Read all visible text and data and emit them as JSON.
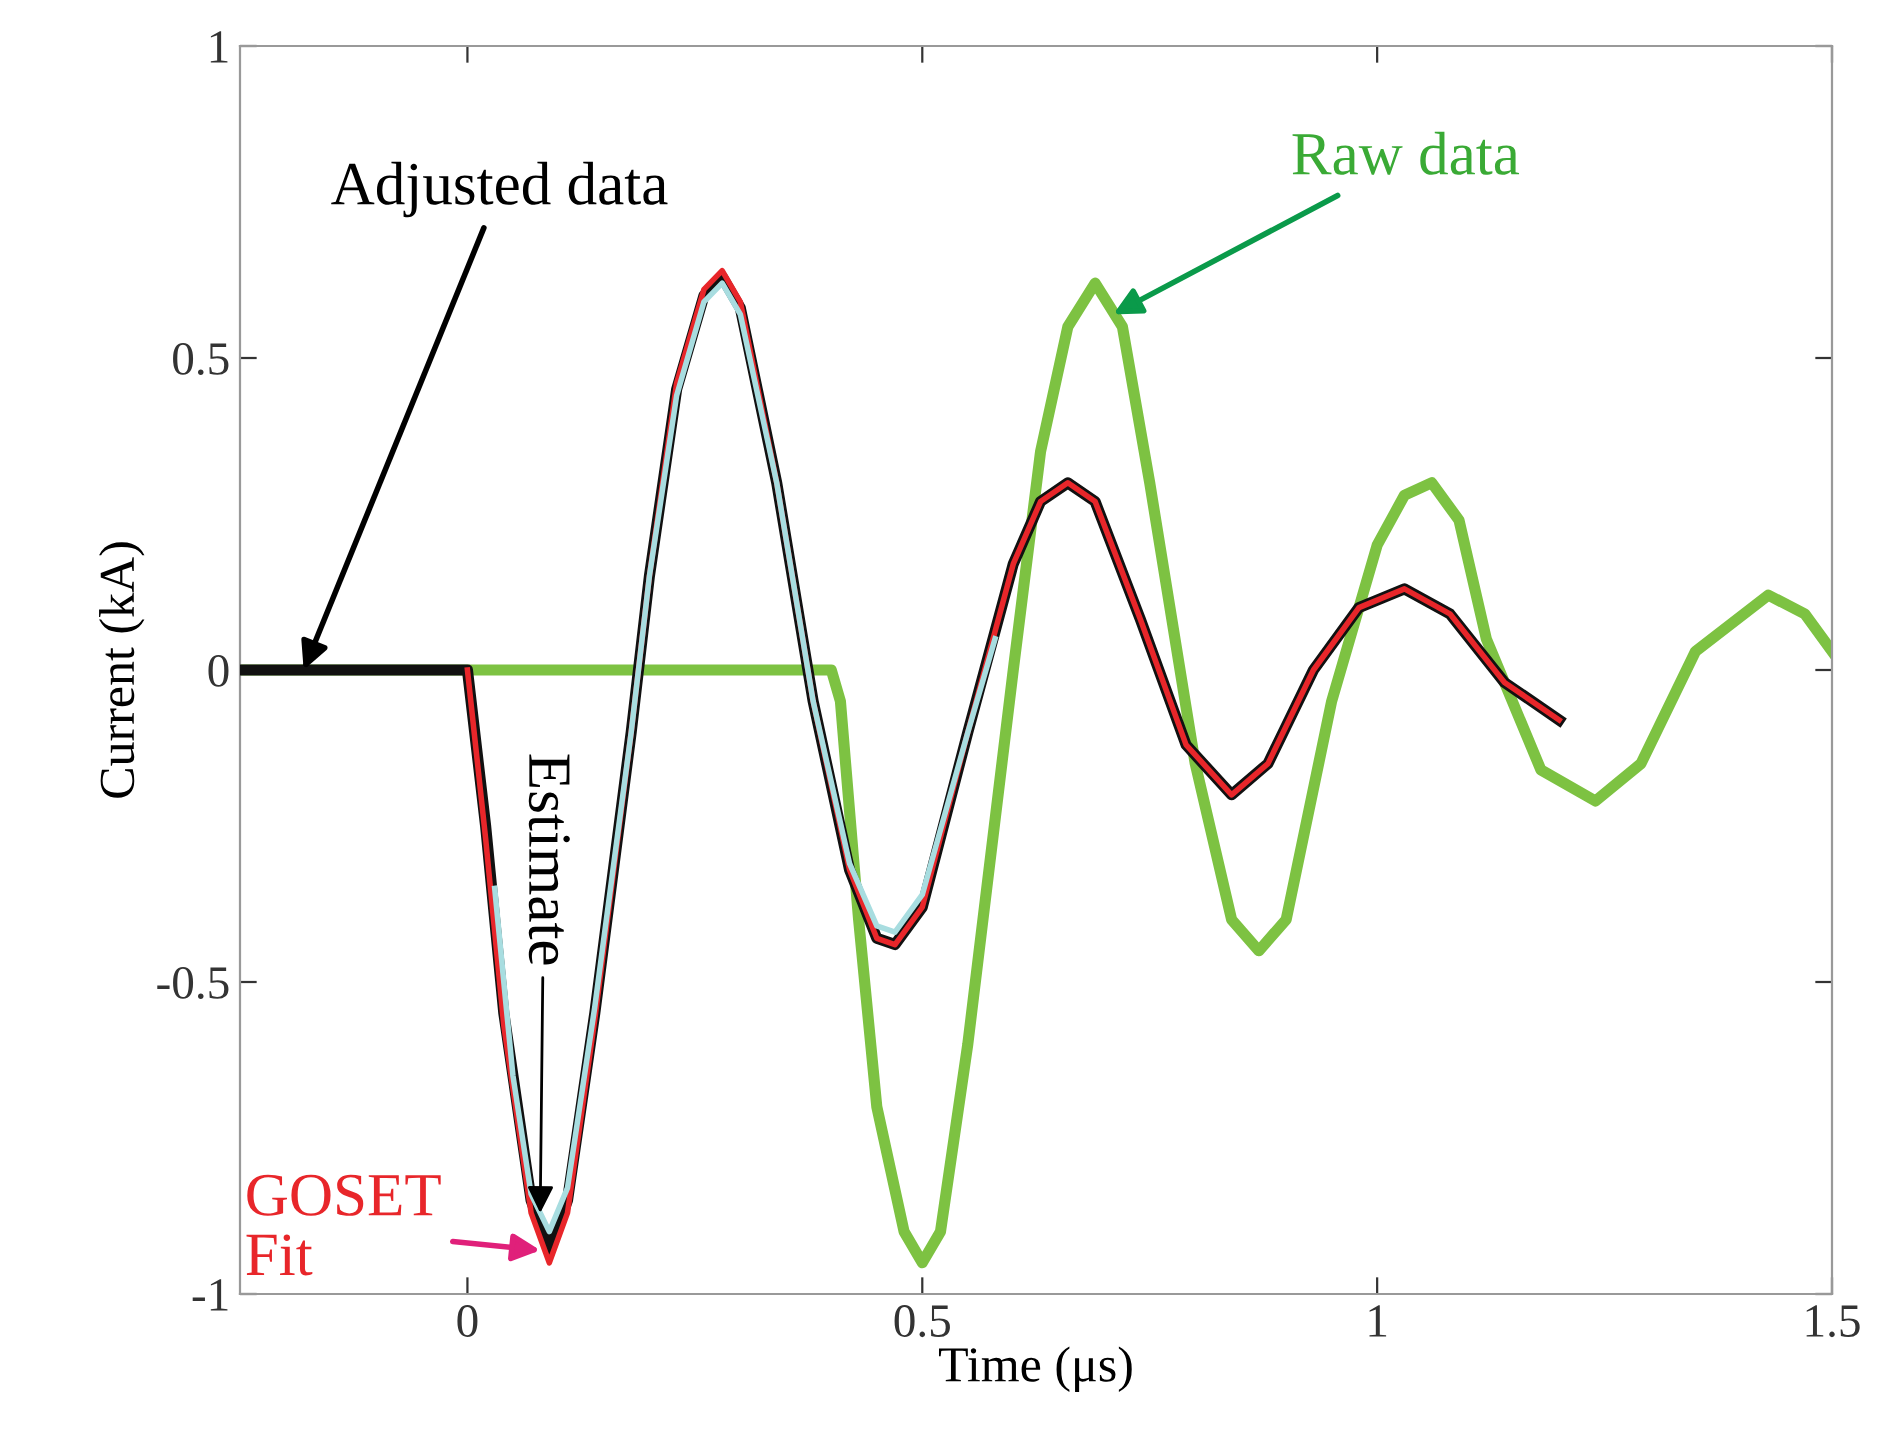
{
  "chart_data": {
    "type": "line",
    "xlabel": "Time (μs)",
    "ylabel": "Current (kA)",
    "xlim": [
      -0.25,
      1.5
    ],
    "ylim": [
      -1,
      1
    ],
    "xticks": [
      0,
      0.5,
      1,
      1.5
    ],
    "yticks": [
      -1,
      -0.5,
      0,
      0.5,
      1
    ],
    "grid": false,
    "legend": false,
    "marker": "none",
    "line_style": "solid",
    "series": [
      {
        "color": "#7dc242",
        "x": [
          -0.25,
          0.4,
          0.41,
          0.43,
          0.45,
          0.48,
          0.5,
          0.52,
          0.55,
          0.6,
          0.63,
          0.66,
          0.69,
          0.72,
          0.75,
          0.8,
          0.84,
          0.87,
          0.9,
          0.95,
          1.0,
          1.03,
          1.06,
          1.09,
          1.12,
          1.18,
          1.24,
          1.29,
          1.35,
          1.43,
          1.47,
          1.5
        ],
        "values": [
          0,
          0,
          -0.05,
          -0.4,
          -0.7,
          -0.9,
          -0.95,
          -0.9,
          -0.6,
          0,
          0.35,
          0.55,
          0.62,
          0.55,
          0.3,
          -0.15,
          -0.4,
          -0.45,
          -0.4,
          -0.05,
          0.2,
          0.28,
          0.3,
          0.24,
          0.05,
          -0.16,
          -0.21,
          -0.15,
          0.03,
          0.12,
          0.09,
          0.03
        ]
      },
      {
        "color": "#111111",
        "x": [
          -0.25,
          0.0,
          0.02,
          0.04,
          0.07,
          0.09,
          0.11,
          0.14,
          0.18,
          0.2,
          0.23,
          0.26,
          0.28,
          0.3,
          0.34,
          0.38,
          0.42,
          0.45,
          0.47,
          0.5,
          0.55,
          0.6,
          0.63,
          0.66,
          0.69,
          0.74,
          0.79,
          0.84,
          0.88,
          0.93,
          0.98,
          1.03,
          1.08,
          1.14,
          1.2
        ],
        "values": [
          0,
          0,
          -0.25,
          -0.55,
          -0.85,
          -0.93,
          -0.85,
          -0.55,
          -0.1,
          0.15,
          0.45,
          0.6,
          0.63,
          0.58,
          0.3,
          -0.05,
          -0.32,
          -0.43,
          -0.44,
          -0.38,
          -0.1,
          0.17,
          0.27,
          0.3,
          0.27,
          0.08,
          -0.12,
          -0.2,
          -0.15,
          0.0,
          0.1,
          0.13,
          0.09,
          -0.02,
          -0.08
        ]
      },
      {
        "color": "#e8262a",
        "x": [
          0.0,
          0.02,
          0.04,
          0.07,
          0.09,
          0.11,
          0.14,
          0.18,
          0.2,
          0.23,
          0.26,
          0.28,
          0.3,
          0.34,
          0.38,
          0.42,
          0.45,
          0.47,
          0.5,
          0.55,
          0.6,
          0.63,
          0.66,
          0.69,
          0.74,
          0.79,
          0.84,
          0.88,
          0.93,
          0.98,
          1.03,
          1.08,
          1.14,
          1.2
        ],
        "values": [
          0,
          -0.27,
          -0.57,
          -0.87,
          -0.95,
          -0.87,
          -0.56,
          -0.1,
          0.15,
          0.46,
          0.61,
          0.64,
          0.59,
          0.3,
          -0.05,
          -0.32,
          -0.43,
          -0.44,
          -0.38,
          -0.1,
          0.17,
          0.27,
          0.3,
          0.27,
          0.08,
          -0.12,
          -0.2,
          -0.15,
          0.0,
          0.1,
          0.13,
          0.09,
          -0.02,
          -0.08
        ]
      },
      {
        "color": "#a8dde0",
        "x": [
          0.03,
          0.05,
          0.07,
          0.09,
          0.11,
          0.14,
          0.18,
          0.2,
          0.23,
          0.26,
          0.28,
          0.3,
          0.34,
          0.38,
          0.42,
          0.45,
          0.47,
          0.5,
          0.55,
          0.58
        ],
        "values": [
          -0.35,
          -0.65,
          -0.84,
          -0.9,
          -0.83,
          -0.54,
          -0.1,
          0.15,
          0.44,
          0.59,
          0.62,
          0.57,
          0.3,
          -0.05,
          -0.31,
          -0.41,
          -0.42,
          -0.36,
          -0.1,
          0.05
        ]
      }
    ],
    "annotations": [
      {
        "text": "Adjusted data",
        "x": -0.18,
        "y": 0
      },
      {
        "text": "Raw data",
        "x": 0.71,
        "y": 0.57
      },
      {
        "text": "Estimate",
        "x": 0.08,
        "y": -0.87
      },
      {
        "text": "GOSET\nFit",
        "x": 0.08,
        "y": -0.93
      }
    ]
  }
}
